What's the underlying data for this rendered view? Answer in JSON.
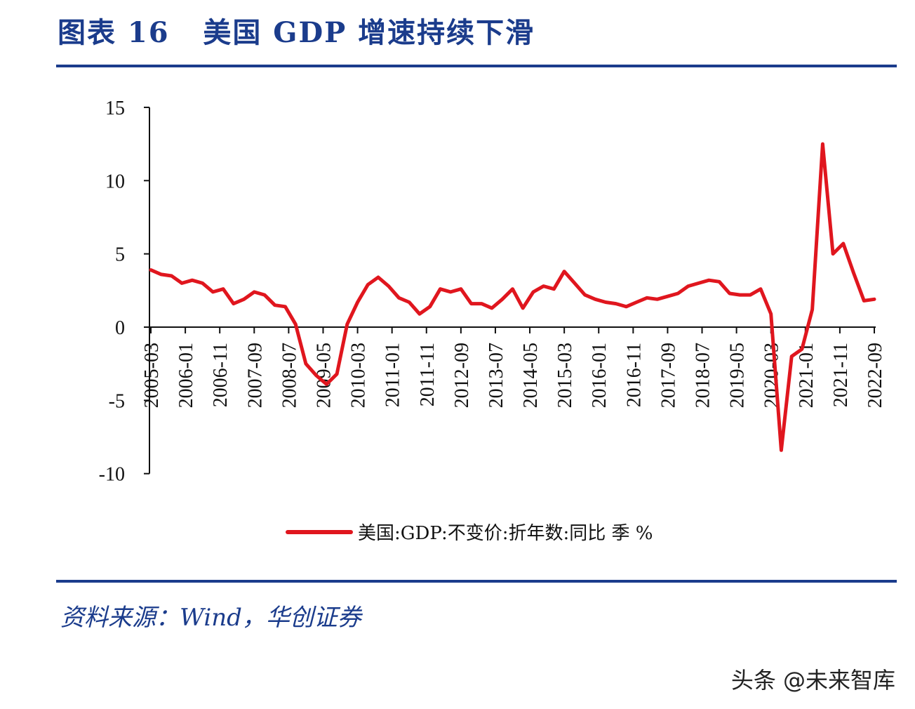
{
  "title": "图表 16   美国 GDP 增速持续下滑",
  "source": "资料来源：Wind，华创证券",
  "watermark": "头条 @未来智库",
  "chart_data": {
    "type": "line",
    "title": "",
    "xlabel": "",
    "ylabel": "",
    "ylim": [
      -10,
      15
    ],
    "yticks": [
      "15",
      "10",
      "5",
      "0",
      "-5",
      "-10"
    ],
    "ytick_values": [
      15,
      10,
      5,
      0,
      -5,
      -10
    ],
    "xtick_labels": [
      "2005-03",
      "2006-01",
      "2006-11",
      "2007-09",
      "2008-07",
      "2009-05",
      "2010-03",
      "2011-01",
      "2011-11",
      "2012-09",
      "2013-07",
      "2014-05",
      "2015-03",
      "2016-01",
      "2016-11",
      "2017-09",
      "2018-07",
      "2019-05",
      "2020-03",
      "2021-01",
      "2021-11",
      "2022-09"
    ],
    "grid": false,
    "legend_position": "bottom",
    "colors": {
      "line": "#e0161e",
      "accent": "#1b3c8c"
    },
    "series": [
      {
        "name": "美国:GDP:不变价:折年数:同比 季 %",
        "x": [
          "2005-03",
          "2005-06",
          "2005-09",
          "2005-12",
          "2006-03",
          "2006-06",
          "2006-09",
          "2006-12",
          "2007-03",
          "2007-06",
          "2007-09",
          "2007-12",
          "2008-03",
          "2008-06",
          "2008-09",
          "2008-12",
          "2009-03",
          "2009-06",
          "2009-09",
          "2009-12",
          "2010-03",
          "2010-06",
          "2010-09",
          "2010-12",
          "2011-03",
          "2011-06",
          "2011-09",
          "2011-12",
          "2012-03",
          "2012-06",
          "2012-09",
          "2012-12",
          "2013-03",
          "2013-06",
          "2013-09",
          "2013-12",
          "2014-03",
          "2014-06",
          "2014-09",
          "2014-12",
          "2015-03",
          "2015-06",
          "2015-09",
          "2015-12",
          "2016-03",
          "2016-06",
          "2016-09",
          "2016-12",
          "2017-03",
          "2017-06",
          "2017-09",
          "2017-12",
          "2018-03",
          "2018-06",
          "2018-09",
          "2018-12",
          "2019-03",
          "2019-06",
          "2019-09",
          "2019-12",
          "2020-03",
          "2020-06",
          "2020-09",
          "2020-12",
          "2021-03",
          "2021-06",
          "2021-09",
          "2021-12",
          "2022-03",
          "2022-06",
          "2022-09"
        ],
        "values": [
          3.9,
          3.6,
          3.5,
          3.0,
          3.2,
          3.0,
          2.4,
          2.6,
          1.6,
          1.9,
          2.4,
          2.2,
          1.5,
          1.4,
          0.2,
          -2.5,
          -3.3,
          -3.9,
          -3.2,
          0.2,
          1.7,
          2.9,
          3.4,
          2.8,
          2.0,
          1.7,
          0.9,
          1.4,
          2.6,
          2.4,
          2.6,
          1.6,
          1.6,
          1.3,
          1.9,
          2.6,
          1.3,
          2.4,
          2.8,
          2.6,
          3.8,
          3.0,
          2.2,
          1.9,
          1.7,
          1.6,
          1.4,
          1.7,
          2.0,
          1.9,
          2.1,
          2.3,
          2.8,
          3.0,
          3.2,
          3.1,
          2.3,
          2.2,
          2.2,
          2.6,
          0.9,
          -8.4,
          -2.0,
          -1.5,
          1.2,
          12.5,
          5.0,
          5.7,
          3.7,
          1.8,
          1.9
        ]
      }
    ]
  }
}
